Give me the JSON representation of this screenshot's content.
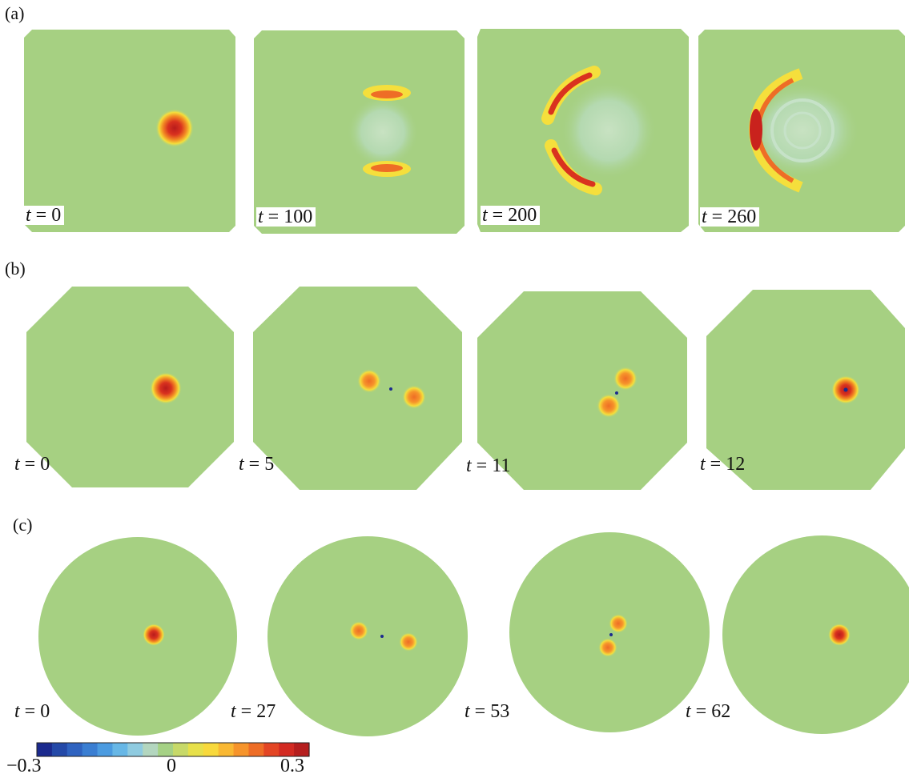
{
  "rows": [
    {
      "label": "(a)",
      "shape": "square",
      "panels": [
        {
          "t_var": "t",
          "eq": " = ",
          "t_value": "0"
        },
        {
          "t_var": "t",
          "eq": " = ",
          "t_value": "100"
        },
        {
          "t_var": "t",
          "eq": " = ",
          "t_value": "200"
        },
        {
          "t_var": "t",
          "eq": " = ",
          "t_value": "260"
        }
      ]
    },
    {
      "label": "(b)",
      "shape": "octagon",
      "panels": [
        {
          "t_var": "t",
          "eq": " = ",
          "t_value": "0"
        },
        {
          "t_var": "t",
          "eq": " = ",
          "t_value": "5"
        },
        {
          "t_var": "t",
          "eq": " = ",
          "t_value": "11"
        },
        {
          "t_var": "t",
          "eq": " = ",
          "t_value": "12"
        }
      ]
    },
    {
      "label": "(c)",
      "shape": "circle",
      "panels": [
        {
          "t_var": "t",
          "eq": " = ",
          "t_value": "0"
        },
        {
          "t_var": "t",
          "eq": " = ",
          "t_value": "27"
        },
        {
          "t_var": "t",
          "eq": " = ",
          "t_value": "53"
        },
        {
          "t_var": "t",
          "eq": " = ",
          "t_value": "62"
        }
      ]
    }
  ],
  "colorbar": {
    "min_label": "−0.3",
    "mid_label": "0",
    "max_label": "0.3",
    "colors": [
      "#1b2a8e",
      "#2449a8",
      "#2f63c0",
      "#3a7ed2",
      "#4b9be0",
      "#67b7e6",
      "#8fcbe0",
      "#b3d6bf",
      "#a5d185",
      "#c7d969",
      "#e7e04a",
      "#f8d93c",
      "#f9b833",
      "#f6942b",
      "#ee6d26",
      "#e34524",
      "#d32a22",
      "#b51e1e"
    ]
  },
  "colors": {
    "background_field": "#a6d082",
    "blob_core": "#c9221d",
    "blob_mid": "#f07a22",
    "blob_edge": "#f2e03b",
    "wave_cyan": "#bfe0c6"
  }
}
